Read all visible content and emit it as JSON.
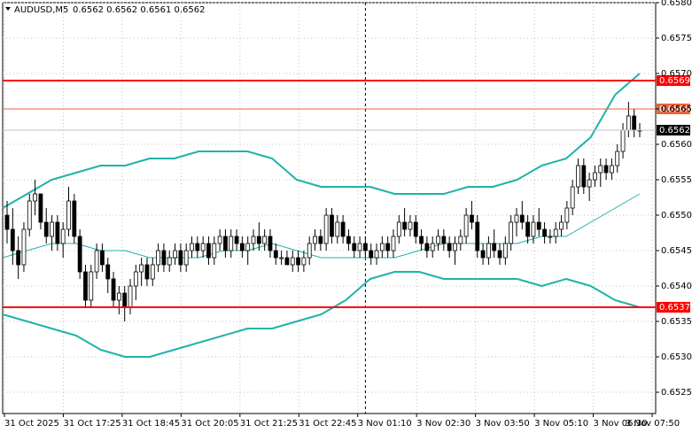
{
  "header": {
    "symbol": "AUDUSD,M5",
    "ohlc": "0.6562 0.6562 0.6561 0.6562"
  },
  "colors": {
    "bollinger": "#20b2aa",
    "support_resistance": "#ff0000",
    "level_orange": "#e8643c",
    "candle": "#000000",
    "grid": "#c0c0c0",
    "current_price_bg": "#000000"
  },
  "chart_data": {
    "type": "candlestick",
    "ylim": [
      0.6522,
      0.658
    ],
    "y_ticks": [
      "0.6580",
      "0.6575",
      "0.6570",
      "0.6565",
      "0.6560",
      "0.6555",
      "0.6550",
      "0.6545",
      "0.6540",
      "0.6535",
      "0.6530",
      "0.6525"
    ],
    "x_ticks": [
      "31 Oct 2025",
      "31 Oct 17:25",
      "31 Oct 18:45",
      "31 Oct 20:05",
      "31 Oct 21:25",
      "31 Oct 22:45",
      "3 Nov 01:10",
      "3 Nov 02:30",
      "3 Nov 03:50",
      "3 Nov 05:10",
      "3 Nov 06:30",
      "3 Nov 07:50"
    ],
    "levels": [
      {
        "label": "0.6569",
        "value": 0.6569,
        "color": "#ff0000"
      },
      {
        "label": "0.6565",
        "value": 0.6565,
        "color": "#e8643c"
      },
      {
        "label": "0.6537",
        "value": 0.6537,
        "color": "#ff0000"
      }
    ],
    "current_price": {
      "label": "0.6562",
      "value": 0.6562
    },
    "session_separator_index": 64,
    "bollinger_upper": [
      0.6551,
      0.6553,
      0.6555,
      0.6556,
      0.6557,
      0.6557,
      0.6558,
      0.6558,
      0.6559,
      0.6559,
      0.6559,
      0.6558,
      0.6555,
      0.6554,
      0.6554,
      0.6554,
      0.6553,
      0.6553,
      0.6553,
      0.6554,
      0.6554,
      0.6555,
      0.6557,
      0.6558,
      0.6561,
      0.6567,
      0.657
    ],
    "bollinger_middle": [
      0.6544,
      0.6545,
      0.6546,
      0.6546,
      0.6545,
      0.6545,
      0.6544,
      0.6544,
      0.6544,
      0.6545,
      0.6545,
      0.6546,
      0.6545,
      0.6544,
      0.6544,
      0.6544,
      0.6544,
      0.6545,
      0.6546,
      0.6546,
      0.6546,
      0.6546,
      0.6547,
      0.6547,
      0.6549,
      0.6551,
      0.6553
    ],
    "bollinger_lower": [
      0.6536,
      0.6535,
      0.6534,
      0.6533,
      0.6531,
      0.653,
      0.653,
      0.6531,
      0.6532,
      0.6533,
      0.6534,
      0.6534,
      0.6535,
      0.6536,
      0.6538,
      0.6541,
      0.6542,
      0.6542,
      0.6541,
      0.6541,
      0.6541,
      0.6541,
      0.654,
      0.6541,
      0.654,
      0.6538,
      0.6537
    ],
    "candles": [
      [
        0.655,
        0.6552,
        0.6546,
        0.6548
      ],
      [
        0.6548,
        0.6551,
        0.6543,
        0.6545
      ],
      [
        0.6545,
        0.6547,
        0.6541,
        0.6543
      ],
      [
        0.6543,
        0.6549,
        0.6542,
        0.6548
      ],
      [
        0.6548,
        0.6553,
        0.6547,
        0.6552
      ],
      [
        0.6552,
        0.6555,
        0.655,
        0.6553
      ],
      [
        0.6553,
        0.6553,
        0.6548,
        0.6549
      ],
      [
        0.6549,
        0.6551,
        0.6546,
        0.6547
      ],
      [
        0.6547,
        0.655,
        0.6545,
        0.6549
      ],
      [
        0.6549,
        0.655,
        0.6545,
        0.6546
      ],
      [
        0.6546,
        0.6549,
        0.6544,
        0.6548
      ],
      [
        0.6548,
        0.6554,
        0.6547,
        0.6552
      ],
      [
        0.6552,
        0.6553,
        0.6546,
        0.6547
      ],
      [
        0.6547,
        0.6548,
        0.6541,
        0.6542
      ],
      [
        0.6542,
        0.6543,
        0.6537,
        0.6538
      ],
      [
        0.6538,
        0.6543,
        0.6537,
        0.6542
      ],
      [
        0.6542,
        0.6546,
        0.6541,
        0.6545
      ],
      [
        0.6545,
        0.6546,
        0.6542,
        0.6543
      ],
      [
        0.6543,
        0.6544,
        0.6539,
        0.6541
      ],
      [
        0.6541,
        0.6542,
        0.6537,
        0.6538
      ],
      [
        0.6538,
        0.654,
        0.6536,
        0.6539
      ],
      [
        0.6539,
        0.654,
        0.6535,
        0.6537
      ],
      [
        0.6537,
        0.6541,
        0.6536,
        0.654
      ],
      [
        0.654,
        0.6543,
        0.6538,
        0.6542
      ],
      [
        0.6542,
        0.6544,
        0.654,
        0.6543
      ],
      [
        0.6543,
        0.6544,
        0.654,
        0.6541
      ],
      [
        0.6541,
        0.6544,
        0.654,
        0.6543
      ],
      [
        0.6543,
        0.6546,
        0.6542,
        0.6545
      ],
      [
        0.6545,
        0.6546,
        0.6542,
        0.6543
      ],
      [
        0.6543,
        0.6545,
        0.6542,
        0.6544
      ],
      [
        0.6544,
        0.6546,
        0.6543,
        0.6545
      ],
      [
        0.6545,
        0.6546,
        0.6542,
        0.6543
      ],
      [
        0.6543,
        0.6546,
        0.6542,
        0.6545
      ],
      [
        0.6545,
        0.6547,
        0.6544,
        0.6546
      ],
      [
        0.6546,
        0.6547,
        0.6544,
        0.6545
      ],
      [
        0.6545,
        0.6547,
        0.6544,
        0.6546
      ],
      [
        0.6546,
        0.6547,
        0.6543,
        0.6544
      ],
      [
        0.6544,
        0.6547,
        0.6543,
        0.6546
      ],
      [
        0.6546,
        0.6548,
        0.6545,
        0.6547
      ],
      [
        0.6547,
        0.6548,
        0.6544,
        0.6545
      ],
      [
        0.6545,
        0.6548,
        0.6544,
        0.6547
      ],
      [
        0.6547,
        0.6548,
        0.6545,
        0.6546
      ],
      [
        0.6546,
        0.6547,
        0.6544,
        0.6545
      ],
      [
        0.6545,
        0.6547,
        0.6543,
        0.6546
      ],
      [
        0.6546,
        0.6548,
        0.6545,
        0.6547
      ],
      [
        0.6547,
        0.6549,
        0.6545,
        0.6546
      ],
      [
        0.6546,
        0.6548,
        0.6545,
        0.6547
      ],
      [
        0.6547,
        0.6548,
        0.6544,
        0.6545
      ],
      [
        0.6545,
        0.6546,
        0.6543,
        0.6544
      ],
      [
        0.6544,
        0.6545,
        0.6543,
        0.6544
      ],
      [
        0.6544,
        0.6545,
        0.6543,
        0.6543
      ],
      [
        0.6543,
        0.6545,
        0.6542,
        0.6544
      ],
      [
        0.6544,
        0.6545,
        0.6542,
        0.6543
      ],
      [
        0.6543,
        0.6545,
        0.6542,
        0.6544
      ],
      [
        0.6544,
        0.6547,
        0.6543,
        0.6546
      ],
      [
        0.6546,
        0.6548,
        0.6545,
        0.6547
      ],
      [
        0.6547,
        0.6548,
        0.6545,
        0.6546
      ],
      [
        0.6546,
        0.6551,
        0.6545,
        0.655
      ],
      [
        0.655,
        0.6551,
        0.6546,
        0.6547
      ],
      [
        0.6547,
        0.655,
        0.6546,
        0.6549
      ],
      [
        0.6549,
        0.655,
        0.6546,
        0.6547
      ],
      [
        0.6547,
        0.6548,
        0.6545,
        0.6546
      ],
      [
        0.6546,
        0.6547,
        0.6544,
        0.6545
      ],
      [
        0.6545,
        0.6547,
        0.6544,
        0.6546
      ],
      [
        0.6546,
        0.6547,
        0.6544,
        0.6545
      ],
      [
        0.6545,
        0.6546,
        0.6543,
        0.6544
      ],
      [
        0.6544,
        0.6546,
        0.6543,
        0.6545
      ],
      [
        0.6545,
        0.6547,
        0.6544,
        0.6546
      ],
      [
        0.6546,
        0.6547,
        0.6544,
        0.6545
      ],
      [
        0.6545,
        0.6548,
        0.6544,
        0.6547
      ],
      [
        0.6547,
        0.655,
        0.6546,
        0.6549
      ],
      [
        0.6549,
        0.6551,
        0.6547,
        0.6548
      ],
      [
        0.6548,
        0.655,
        0.6547,
        0.6549
      ],
      [
        0.6549,
        0.655,
        0.6546,
        0.6547
      ],
      [
        0.6547,
        0.6548,
        0.6545,
        0.6546
      ],
      [
        0.6546,
        0.6547,
        0.6544,
        0.6545
      ],
      [
        0.6545,
        0.6547,
        0.6544,
        0.6546
      ],
      [
        0.6546,
        0.6548,
        0.6545,
        0.6547
      ],
      [
        0.6547,
        0.6548,
        0.6545,
        0.6546
      ],
      [
        0.6546,
        0.6547,
        0.6544,
        0.6545
      ],
      [
        0.6545,
        0.6547,
        0.6543,
        0.6546
      ],
      [
        0.6546,
        0.6548,
        0.6545,
        0.6547
      ],
      [
        0.6547,
        0.6551,
        0.6546,
        0.655
      ],
      [
        0.655,
        0.6552,
        0.6548,
        0.6549
      ],
      [
        0.6549,
        0.655,
        0.6544,
        0.6545
      ],
      [
        0.6545,
        0.6546,
        0.6543,
        0.6544
      ],
      [
        0.6544,
        0.6547,
        0.6543,
        0.6546
      ],
      [
        0.6546,
        0.6548,
        0.6544,
        0.6545
      ],
      [
        0.6545,
        0.6546,
        0.6543,
        0.6544
      ],
      [
        0.6544,
        0.6547,
        0.6543,
        0.6546
      ],
      [
        0.6546,
        0.655,
        0.6545,
        0.6549
      ],
      [
        0.6549,
        0.6551,
        0.6547,
        0.655
      ],
      [
        0.655,
        0.6552,
        0.6548,
        0.6549
      ],
      [
        0.6549,
        0.655,
        0.6546,
        0.6547
      ],
      [
        0.6547,
        0.655,
        0.6546,
        0.6549
      ],
      [
        0.6549,
        0.6551,
        0.6547,
        0.6548
      ],
      [
        0.6548,
        0.6549,
        0.6546,
        0.6547
      ],
      [
        0.6547,
        0.6548,
        0.6546,
        0.6547
      ],
      [
        0.6547,
        0.6549,
        0.6546,
        0.6548
      ],
      [
        0.6548,
        0.655,
        0.6547,
        0.6549
      ],
      [
        0.6549,
        0.6552,
        0.6548,
        0.6551
      ],
      [
        0.6551,
        0.6555,
        0.655,
        0.6554
      ],
      [
        0.6554,
        0.6558,
        0.6553,
        0.6557
      ],
      [
        0.6557,
        0.6558,
        0.6553,
        0.6554
      ],
      [
        0.6554,
        0.6556,
        0.6552,
        0.6555
      ],
      [
        0.6555,
        0.6557,
        0.6554,
        0.6556
      ],
      [
        0.6556,
        0.6558,
        0.6554,
        0.6557
      ],
      [
        0.6557,
        0.6558,
        0.6555,
        0.6556
      ],
      [
        0.6556,
        0.6558,
        0.6555,
        0.6557
      ],
      [
        0.6557,
        0.656,
        0.6556,
        0.6559
      ],
      [
        0.6559,
        0.6563,
        0.6558,
        0.6562
      ],
      [
        0.6562,
        0.6566,
        0.6561,
        0.6564
      ],
      [
        0.6564,
        0.6565,
        0.6561,
        0.6562
      ],
      [
        0.6562,
        0.6563,
        0.6561,
        0.6562
      ]
    ]
  }
}
